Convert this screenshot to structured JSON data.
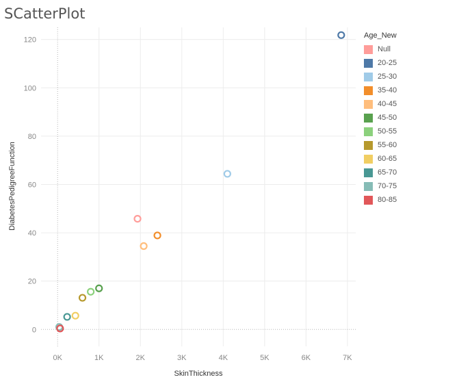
{
  "chart_data": {
    "type": "scatter",
    "title": "SCatterPlot",
    "xlabel": "SkinThickness",
    "ylabel": "DiabetesPedigreeFunction",
    "xlim": [
      -400,
      7200
    ],
    "ylim": [
      -7,
      125
    ],
    "x_ticks": [
      0,
      1000,
      2000,
      3000,
      4000,
      5000,
      6000,
      7000
    ],
    "x_tick_labels": [
      "0K",
      "1K",
      "2K",
      "3K",
      "4K",
      "5K",
      "6K",
      "7K"
    ],
    "y_ticks": [
      0,
      20,
      40,
      60,
      80,
      100,
      120
    ],
    "y_tick_labels": [
      "0",
      "20",
      "40",
      "60",
      "80",
      "100",
      "120"
    ],
    "grid": true,
    "legend_position": "right",
    "legend_title": "Age_New",
    "series": [
      {
        "name": "Null",
        "color": "#ff9d9a",
        "points": [
          {
            "x": 1930,
            "y": 45.8
          }
        ]
      },
      {
        "name": "20-25",
        "color": "#4e79a7",
        "points": [
          {
            "x": 6850,
            "y": 121.8
          }
        ]
      },
      {
        "name": "25-30",
        "color": "#a0cbe8",
        "points": [
          {
            "x": 4100,
            "y": 64.4
          }
        ]
      },
      {
        "name": "35-40",
        "color": "#f28e2b",
        "points": [
          {
            "x": 2410,
            "y": 38.9
          }
        ]
      },
      {
        "name": "40-45",
        "color": "#ffbe7d",
        "points": [
          {
            "x": 2080,
            "y": 34.5
          }
        ]
      },
      {
        "name": "45-50",
        "color": "#59a14f",
        "points": [
          {
            "x": 1000,
            "y": 17.0
          }
        ]
      },
      {
        "name": "50-55",
        "color": "#8cd17d",
        "points": [
          {
            "x": 800,
            "y": 15.6
          }
        ]
      },
      {
        "name": "55-60",
        "color": "#b6992d",
        "points": [
          {
            "x": 600,
            "y": 13.1
          }
        ]
      },
      {
        "name": "60-65",
        "color": "#f1ce63",
        "points": [
          {
            "x": 430,
            "y": 5.7
          }
        ]
      },
      {
        "name": "65-70",
        "color": "#499894",
        "points": [
          {
            "x": 230,
            "y": 5.2
          }
        ]
      },
      {
        "name": "70-75",
        "color": "#86bcb6",
        "points": [
          {
            "x": 40,
            "y": 1.0
          }
        ]
      },
      {
        "name": "80-85",
        "color": "#e15759",
        "points": [
          {
            "x": 60,
            "y": 0.4
          }
        ]
      }
    ]
  }
}
